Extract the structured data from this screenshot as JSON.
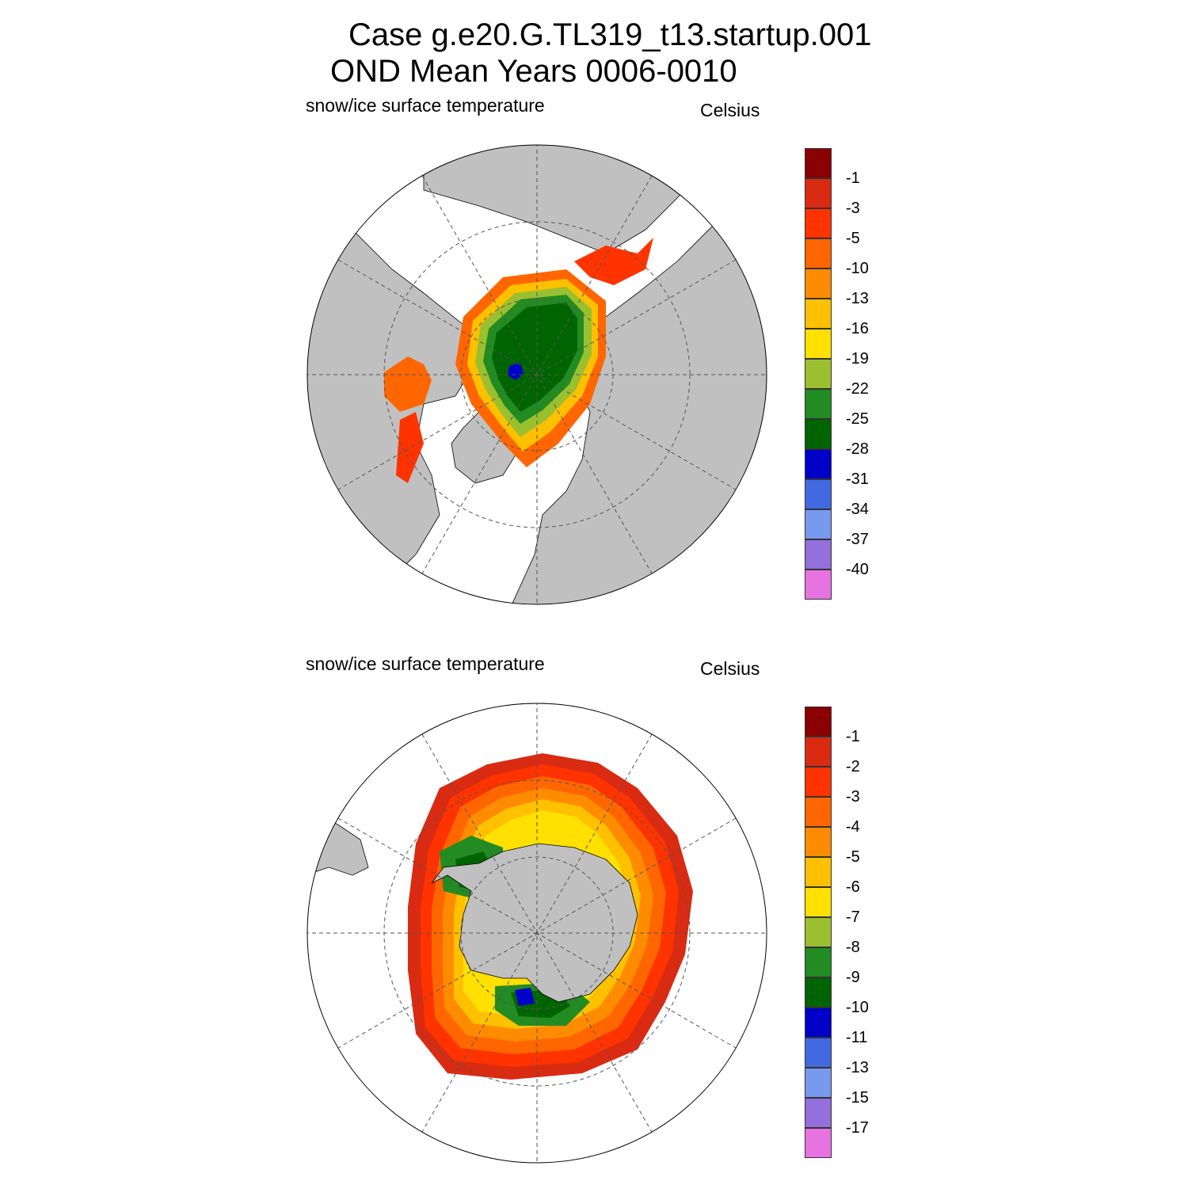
{
  "title": {
    "line1": "Case g.e20.G.TL319_t13.startup.001",
    "line2": "OND Mean   Years 0006-0010"
  },
  "colors": {
    "land": "#c0c0c0",
    "ocean_open": "#ffffff",
    "grid": "#555555"
  },
  "panels": [
    {
      "id": "north",
      "hemisphere": "Northern",
      "variable_label": "snow/ice surface temperature",
      "units_label": "Celsius",
      "colorbar": {
        "colors": [
          "#8b0000",
          "#d92b12",
          "#ff3300",
          "#ff6600",
          "#ff8c00",
          "#ffc000",
          "#ffe000",
          "#9ac030",
          "#228b22",
          "#006400",
          "#0000c8",
          "#4169e1",
          "#7799ee",
          "#9370db",
          "#e673e0"
        ],
        "labels": [
          "-1",
          "-3",
          "-5",
          "-10",
          "-13",
          "-16",
          "-19",
          "-22",
          "-25",
          "-28",
          "-31",
          "-34",
          "-37",
          "-40"
        ]
      }
    },
    {
      "id": "south",
      "hemisphere": "Southern",
      "variable_label": "snow/ice surface temperature",
      "units_label": "Celsius",
      "colorbar": {
        "colors": [
          "#8b0000",
          "#d92b12",
          "#ff3300",
          "#ff6600",
          "#ff8c00",
          "#ffc000",
          "#ffe000",
          "#9ac030",
          "#228b22",
          "#006400",
          "#0000c8",
          "#4169e1",
          "#7799ee",
          "#9370db",
          "#e673e0"
        ],
        "labels": [
          "-1",
          "-2",
          "-3",
          "-4",
          "-5",
          "-6",
          "-7",
          "-8",
          "-9",
          "-10",
          "-11",
          "-13",
          "-15",
          "-17"
        ]
      }
    }
  ]
}
